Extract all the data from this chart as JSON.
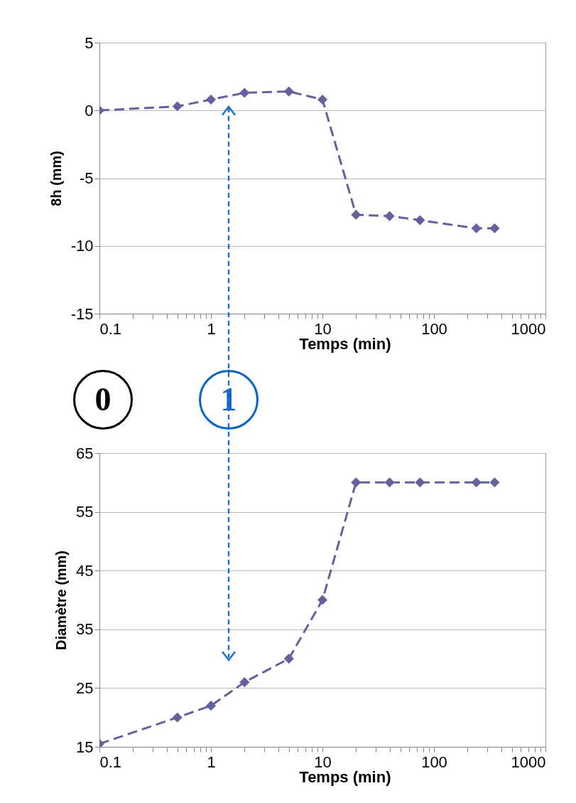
{
  "chart_data": [
    {
      "type": "line",
      "ylabel": "8h (mm)",
      "xlabel": "Temps (min)",
      "log": "x",
      "grid": "y",
      "marker": "diamond",
      "line_style": "dashed",
      "x": [
        0.1,
        0.5,
        1,
        2,
        5,
        10,
        20,
        40,
        75,
        240,
        350
      ],
      "series": [
        {
          "color": "#65619c",
          "values": [
            0,
            0.3,
            0.8,
            1.3,
            1.4,
            0.8,
            -7.7,
            -7.8,
            -8.1,
            -8.7,
            -8.7
          ]
        }
      ],
      "xlim": [
        0.1,
        1000
      ],
      "xticks": [
        0.1,
        {
          "value": 0.2,
          "label": null
        },
        {
          "value": 0.3,
          "label": null
        },
        {
          "value": 0.4,
          "label": null
        },
        {
          "value": 0.5,
          "label": null
        },
        {
          "value": 0.6,
          "label": null
        },
        {
          "value": 0.7,
          "label": null
        },
        {
          "value": 0.8,
          "label": null
        },
        {
          "value": 0.9,
          "label": null
        },
        1,
        {
          "value": 2,
          "label": null
        },
        {
          "value": 3,
          "label": null
        },
        {
          "value": 4,
          "label": null
        },
        {
          "value": 5,
          "label": null
        },
        {
          "value": 6,
          "label": null
        },
        {
          "value": 7,
          "label": null
        },
        {
          "value": 8,
          "label": null
        },
        {
          "value": 9,
          "label": null
        },
        10,
        {
          "value": 20,
          "label": null
        },
        {
          "value": 30,
          "label": null
        },
        {
          "value": 40,
          "label": null
        },
        {
          "value": 50,
          "label": null
        },
        {
          "value": 60,
          "label": null
        },
        {
          "value": 70,
          "label": null
        },
        {
          "value": 80,
          "label": null
        },
        {
          "value": 90,
          "label": null
        },
        100,
        {
          "value": 200,
          "label": null
        },
        {
          "value": 300,
          "label": null
        },
        {
          "value": 400,
          "label": null
        },
        {
          "value": 500,
          "label": null
        },
        {
          "value": 600,
          "label": null
        },
        {
          "value": 700,
          "label": null
        },
        {
          "value": 800,
          "label": null
        },
        {
          "value": 900,
          "label": null
        },
        1000
      ],
      "ylim": [
        -15,
        5
      ],
      "yticks": [
        -15,
        -10,
        -5,
        0,
        5
      ],
      "annotations": [
        "0",
        "1"
      ]
    },
    {
      "type": "line",
      "ylabel": "Diamètre (mm)",
      "xlabel": "Temps (min)",
      "log": "x",
      "grid": "y",
      "marker": "diamond",
      "line_style": "dashed",
      "x": [
        0.1,
        0.5,
        1,
        2,
        5,
        10,
        20,
        40,
        75,
        240,
        350
      ],
      "series": [
        {
          "color": "#65619c",
          "values": [
            15.5,
            20,
            22,
            26,
            30,
            40,
            60,
            60,
            60,
            60,
            60
          ]
        }
      ],
      "xlim": [
        0.1,
        1000
      ],
      "xticks": [
        0.1,
        {
          "value": 0.2,
          "label": null
        },
        {
          "value": 0.3,
          "label": null
        },
        {
          "value": 0.4,
          "label": null
        },
        {
          "value": 0.5,
          "label": null
        },
        {
          "value": 0.6,
          "label": null
        },
        {
          "value": 0.7,
          "label": null
        },
        {
          "value": 0.8,
          "label": null
        },
        {
          "value": 0.9,
          "label": null
        },
        1,
        {
          "value": 2,
          "label": null
        },
        {
          "value": 3,
          "label": null
        },
        {
          "value": 4,
          "label": null
        },
        {
          "value": 5,
          "label": null
        },
        {
          "value": 6,
          "label": null
        },
        {
          "value": 7,
          "label": null
        },
        {
          "value": 8,
          "label": null
        },
        {
          "value": 9,
          "label": null
        },
        10,
        {
          "value": 20,
          "label": null
        },
        {
          "value": 30,
          "label": null
        },
        {
          "value": 40,
          "label": null
        },
        {
          "value": 50,
          "label": null
        },
        {
          "value": 60,
          "label": null
        },
        {
          "value": 70,
          "label": null
        },
        {
          "value": 80,
          "label": null
        },
        {
          "value": 90,
          "label": null
        },
        100,
        {
          "value": 200,
          "label": null
        },
        {
          "value": 300,
          "label": null
        },
        {
          "value": 400,
          "label": null
        },
        {
          "value": 500,
          "label": null
        },
        {
          "value": 600,
          "label": null
        },
        {
          "value": 700,
          "label": null
        },
        {
          "value": 800,
          "label": null
        },
        {
          "value": 900,
          "label": null
        },
        1000
      ],
      "ylim": [
        15,
        65
      ],
      "yticks": [
        15,
        25,
        35,
        45,
        55,
        65
      ]
    }
  ]
}
